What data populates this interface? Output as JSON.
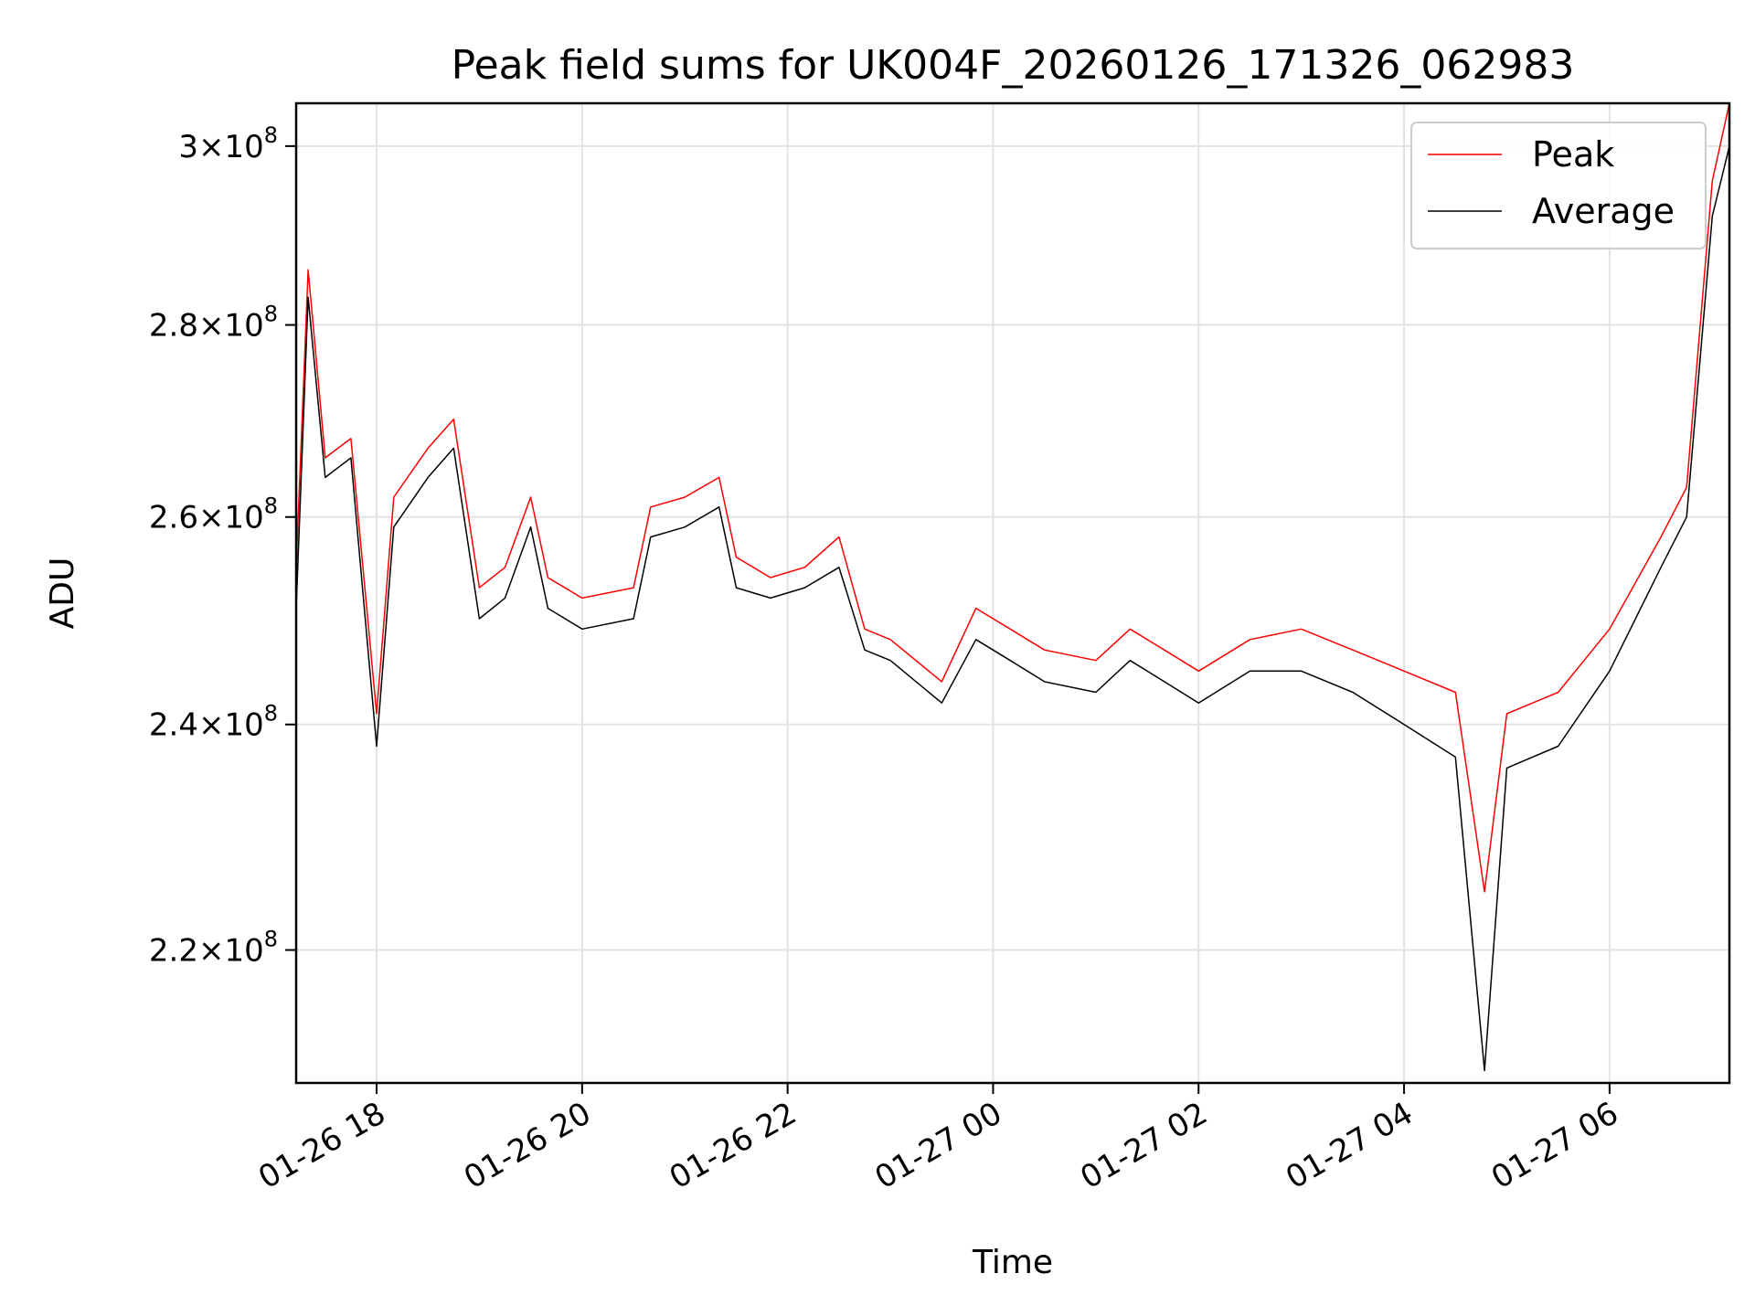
{
  "chart_data": {
    "type": "line",
    "title": "Peak field sums for UK004F_20260126_171326_062983",
    "xlabel": "Time",
    "ylabel": "ADU",
    "y_scale": "log",
    "ylim": [
      209000000,
      305000000
    ],
    "xlim": [
      "2026-01-26 17:13",
      "2026-01-27 07:10"
    ],
    "x_ticks": [
      {
        "value": "2026-01-26 18:00",
        "label": "01-26 18"
      },
      {
        "value": "2026-01-26 20:00",
        "label": "01-26 20"
      },
      {
        "value": "2026-01-26 22:00",
        "label": "01-26 22"
      },
      {
        "value": "2026-01-27 00:00",
        "label": "01-27 00"
      },
      {
        "value": "2026-01-27 02:00",
        "label": "01-27 02"
      },
      {
        "value": "2026-01-27 04:00",
        "label": "01-27 04"
      },
      {
        "value": "2026-01-27 06:00",
        "label": "01-27 06"
      }
    ],
    "y_ticks": [
      {
        "value": 220000000,
        "mantissa": "2.2",
        "exponent": "8"
      },
      {
        "value": 240000000,
        "mantissa": "2.4",
        "exponent": "8"
      },
      {
        "value": 260000000,
        "mantissa": "2.6",
        "exponent": "8"
      },
      {
        "value": 280000000,
        "mantissa": "2.8",
        "exponent": "8"
      },
      {
        "value": 300000000,
        "mantissa": "3",
        "exponent": "8"
      }
    ],
    "grid": true,
    "legend_position": "top-right",
    "x": [
      "2026-01-26 17:13",
      "2026-01-26 17:20",
      "2026-01-26 17:30",
      "2026-01-26 17:45",
      "2026-01-26 18:00",
      "2026-01-26 18:10",
      "2026-01-26 18:30",
      "2026-01-26 18:45",
      "2026-01-26 19:00",
      "2026-01-26 19:15",
      "2026-01-26 19:30",
      "2026-01-26 19:40",
      "2026-01-26 20:00",
      "2026-01-26 20:30",
      "2026-01-26 20:40",
      "2026-01-26 21:00",
      "2026-01-26 21:20",
      "2026-01-26 21:30",
      "2026-01-26 21:50",
      "2026-01-26 22:10",
      "2026-01-26 22:30",
      "2026-01-26 22:45",
      "2026-01-26 23:00",
      "2026-01-26 23:30",
      "2026-01-26 23:50",
      "2026-01-27 00:10",
      "2026-01-27 00:30",
      "2026-01-27 01:00",
      "2026-01-27 01:20",
      "2026-01-27 01:40",
      "2026-01-27 02:00",
      "2026-01-27 02:30",
      "2026-01-27 03:00",
      "2026-01-27 03:30",
      "2026-01-27 04:00",
      "2026-01-27 04:30",
      "2026-01-27 04:47",
      "2026-01-27 05:00",
      "2026-01-27 05:30",
      "2026-01-27 06:00",
      "2026-01-27 06:30",
      "2026-01-27 06:45",
      "2026-01-27 07:00",
      "2026-01-27 07:10"
    ],
    "series": [
      {
        "name": "Peak",
        "color": "#ff0000",
        "values": [
          255000000,
          286000000,
          266000000,
          268000000,
          241000000,
          262000000,
          267000000,
          270000000,
          253000000,
          255000000,
          262000000,
          254000000,
          252000000,
          253000000,
          261000000,
          262000000,
          264000000,
          256000000,
          254000000,
          255000000,
          258000000,
          249000000,
          248000000,
          244000000,
          251000000,
          249000000,
          247000000,
          246000000,
          249000000,
          247000000,
          245000000,
          248000000,
          249000000,
          247000000,
          245000000,
          243000000,
          225000000,
          241000000,
          243000000,
          249000000,
          258000000,
          263000000,
          296000000,
          305000000
        ]
      },
      {
        "name": "Average",
        "color": "#000000",
        "values": [
          251000000,
          283000000,
          264000000,
          266000000,
          238000000,
          259000000,
          264000000,
          267000000,
          250000000,
          252000000,
          259000000,
          251000000,
          249000000,
          250000000,
          258000000,
          259000000,
          261000000,
          253000000,
          252000000,
          253000000,
          255000000,
          247000000,
          246000000,
          242000000,
          248000000,
          246000000,
          244000000,
          243000000,
          246000000,
          244000000,
          242000000,
          245000000,
          245000000,
          243000000,
          240000000,
          237000000,
          210000000,
          236000000,
          238000000,
          245000000,
          255000000,
          260000000,
          292000000,
          300000000
        ]
      }
    ]
  }
}
